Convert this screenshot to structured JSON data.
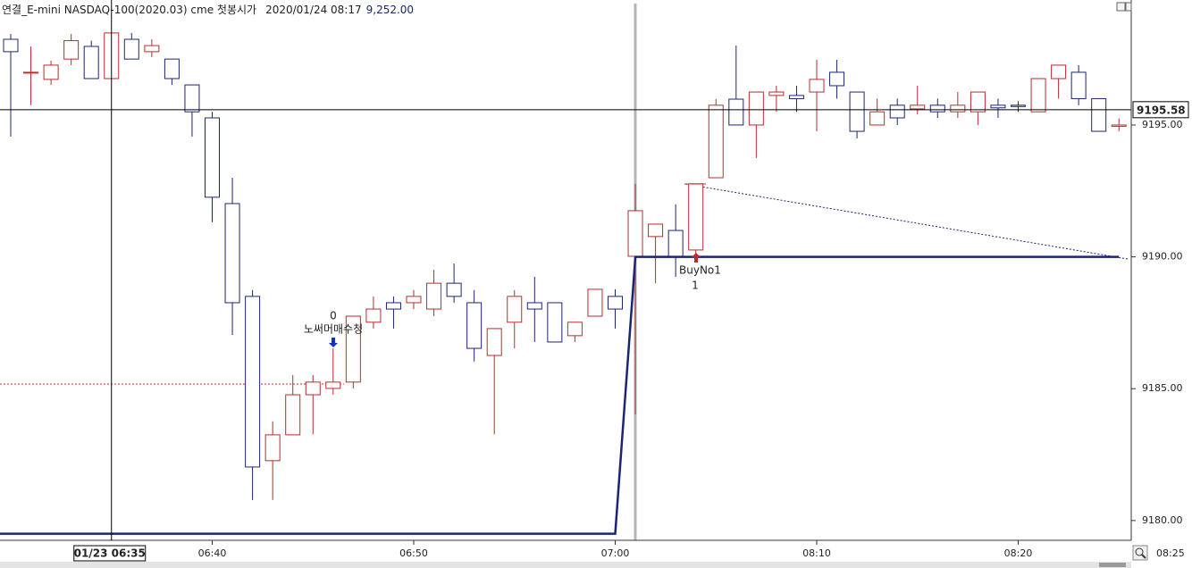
{
  "chart_data": {
    "type": "candlestick",
    "title": "연결_E-mini NASDAQ-100(2020.03) cme 첫봉시가",
    "timestamp": "2020/01/24 08:17",
    "last_price": "9,252.00",
    "up_color": "#c0282d",
    "down_color": "#1c2478",
    "categories": [
      null,
      null,
      null,
      null,
      null,
      null,
      null,
      null,
      null,
      null,
      "06:40",
      null,
      null,
      null,
      null,
      null,
      null,
      null,
      null,
      null,
      "06:50",
      null,
      null,
      null,
      null,
      null,
      null,
      null,
      null,
      null,
      "07:00",
      null,
      null,
      null,
      null,
      null,
      null,
      null,
      null,
      null,
      "08:10",
      null,
      null,
      null,
      null,
      null,
      null,
      null,
      null,
      null,
      "08:20",
      null,
      null,
      null,
      null,
      null
    ],
    "open": [
      9198.25,
      9197.0,
      9196.73,
      9197.5,
      9197.98,
      9196.76,
      9198.25,
      9197.78,
      9197.5,
      9196.52,
      9195.27,
      9192.02,
      9188.5,
      9182.27,
      9183.25,
      9184.77,
      9185.01,
      9185.25,
      9187.52,
      9188.26,
      9188.26,
      9188.02,
      9189.0,
      9188.26,
      9186.26,
      9187.52,
      9188.26,
      9188.26,
      9187.01,
      9187.75,
      9188.5,
      9190.02,
      9190.77,
      9191.0,
      9190.26,
      9193.0,
      9195.98,
      9195.0,
      9196.12,
      9196.12,
      9196.25,
      9197.0,
      9196.25,
      9195.0,
      9195.75,
      9195.61,
      9195.75,
      9195.5,
      9195.5,
      9195.75,
      9195.75,
      9195.5,
      9196.76,
      9197.0,
      9196.0,
      9194.95
    ],
    "high": [
      9198.45,
      9197.98,
      9197.44,
      9198.45,
      9198.2,
      9198.5,
      9198.49,
      9198.25,
      9197.5,
      9196.52,
      9195.5,
      9193.0,
      9188.74,
      9183.76,
      9185.52,
      9185.52,
      9186.53,
      9187.75,
      9188.5,
      9188.5,
      9188.74,
      9189.51,
      9189.75,
      9188.74,
      9187.28,
      9188.74,
      9189.24,
      9188.26,
      9187.52,
      9188.77,
      9188.77,
      9192.77,
      9191.24,
      9191.99,
      9192.77,
      9195.98,
      9198.01,
      9196.25,
      9196.49,
      9196.49,
      9197.47,
      9197.47,
      9196.25,
      9196.0,
      9196.0,
      9196.49,
      9196.0,
      9196.25,
      9196.25,
      9196.0,
      9195.9,
      9196.76,
      9197.27,
      9197.27,
      9196.0,
      9195.25
    ],
    "low": [
      9194.56,
      9195.75,
      9196.52,
      9197.27,
      9196.76,
      9196.76,
      9197.5,
      9197.57,
      9196.52,
      9194.56,
      9191.31,
      9187.04,
      9180.78,
      9180.78,
      9183.25,
      9183.27,
      9184.77,
      9185.01,
      9187.28,
      9187.28,
      9188.02,
      9187.75,
      9188.26,
      9186.03,
      9183.27,
      9186.53,
      9186.77,
      9186.77,
      9186.77,
      9187.75,
      9187.28,
      9184.03,
      9189.0,
      9189.24,
      9190.02,
      9193.0,
      9195.0,
      9193.75,
      9195.5,
      9195.5,
      9194.76,
      9196.0,
      9194.49,
      9195.0,
      9195.0,
      9195.4,
      9195.27,
      9195.27,
      9195.0,
      9195.27,
      9195.5,
      9195.5,
      9196.0,
      9195.75,
      9194.76,
      9194.76
    ],
    "close": [
      9197.78,
      9197.0,
      9197.27,
      9198.2,
      9196.76,
      9198.49,
      9197.5,
      9198.01,
      9196.76,
      9195.5,
      9192.26,
      9188.26,
      9182.03,
      9183.25,
      9184.77,
      9185.25,
      9185.25,
      9187.75,
      9188.02,
      9188.02,
      9188.5,
      9189.0,
      9188.5,
      9186.53,
      9187.28,
      9188.5,
      9188.02,
      9186.77,
      9187.52,
      9188.77,
      9188.02,
      9191.75,
      9191.24,
      9190.02,
      9192.77,
      9195.75,
      9195.0,
      9196.25,
      9196.25,
      9196.0,
      9196.73,
      9196.49,
      9194.76,
      9195.5,
      9195.27,
      9195.75,
      9195.5,
      9195.75,
      9196.25,
      9195.65,
      9195.7,
      9196.76,
      9197.27,
      9196.0,
      9194.76,
      9195.0
    ],
    "position_line": {
      "color": "#1c2478",
      "values": [
        9179.5,
        9179.5,
        9179.5,
        9179.5,
        9179.5,
        9179.5,
        9179.5,
        9179.5,
        9179.5,
        9179.5,
        9179.5,
        9179.5,
        9179.5,
        9179.5,
        9179.5,
        9179.5,
        9179.5,
        9179.5,
        9179.5,
        9179.5,
        9179.5,
        9179.5,
        9179.5,
        9179.5,
        9179.5,
        9179.5,
        9179.5,
        9179.5,
        9179.5,
        9179.5,
        9179.5,
        9190.0,
        9190.0,
        9190.0,
        9190.0,
        9190.0,
        9190.0,
        9190.0,
        9190.0,
        9190.0,
        9190.0,
        9190.0,
        9190.0,
        9190.0,
        9190.0,
        9190.0,
        9190.0,
        9190.0,
        9190.0,
        9190.0,
        9190.0,
        9190.0,
        9190.0,
        9190.0,
        9190.0,
        9190.0
      ]
    },
    "ylim": [
      9179.25,
      9199.74
    ],
    "yticks": [
      {
        "value": 9180,
        "label": "9180.00"
      },
      {
        "value": 9185,
        "label": "9185.00"
      },
      {
        "value": 9190,
        "label": "9190.00"
      },
      {
        "value": 9195,
        "label": "9195.00"
      }
    ],
    "x_axis_end_label": "08:25",
    "crosshair": {
      "x_label": "01/23 06:35",
      "y": 9195.58
    },
    "signals": [
      {
        "name": "노써머매수청",
        "quantity": 0,
        "color": "#1530c8"
      },
      {
        "name": "BuyNo1",
        "quantity": 1,
        "color": "#c0282d"
      }
    ]
  }
}
